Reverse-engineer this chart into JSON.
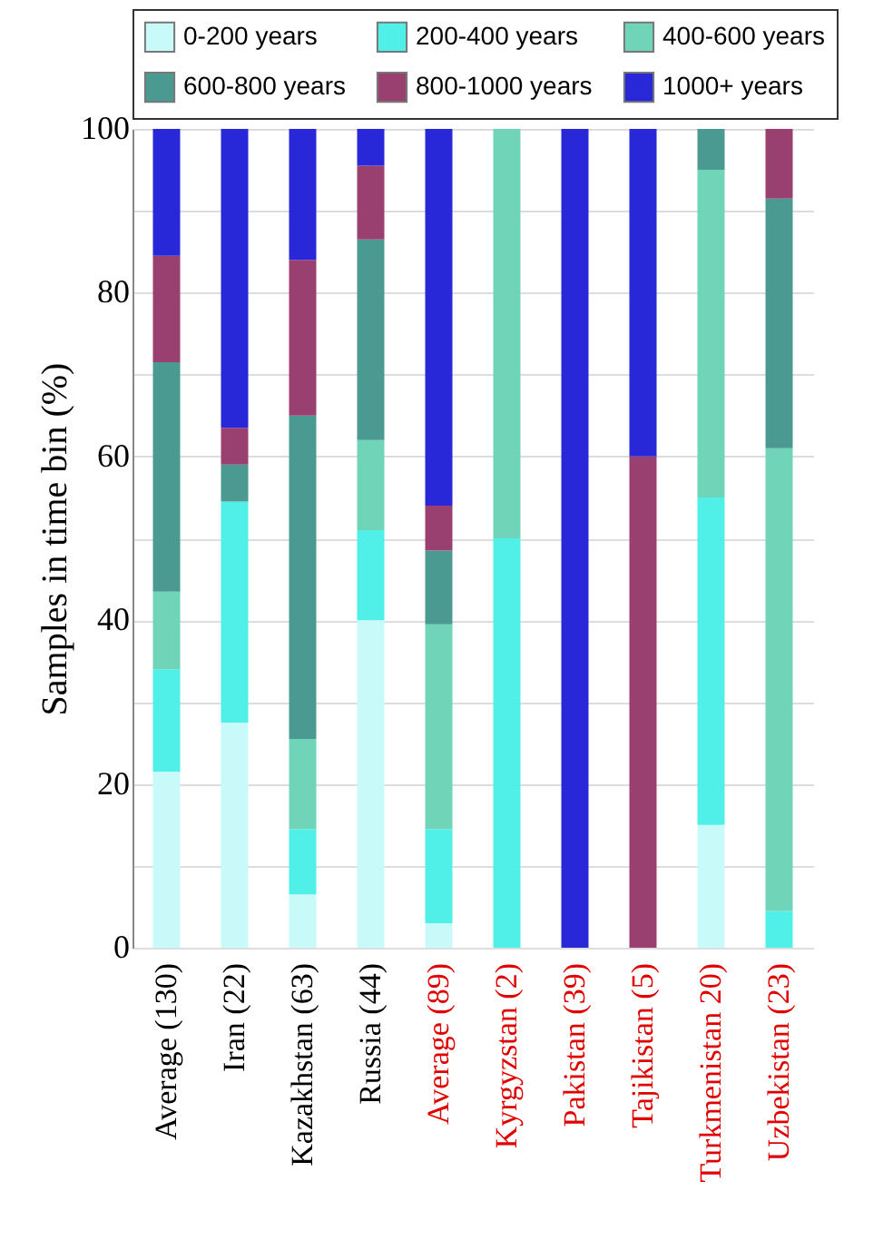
{
  "chart_data": {
    "type": "bar",
    "stacked": true,
    "ylabel": "Samples in time bin (%)",
    "categories": [
      "Average (130)",
      "Iran (22)",
      "Kazakhstan (63)",
      "Russia (44)",
      "Average (89)",
      "Kyrgyzstan (2)",
      "Pakistan (39)",
      "Tajikistan (5)",
      "Turkmenistan 20)",
      "Uzbekistan (23)"
    ],
    "series": [
      {
        "name": "0-200 years",
        "color": "#c8fafa",
        "values": [
          21.5,
          27.5,
          6.5,
          40,
          3,
          0,
          0,
          0,
          15,
          0
        ]
      },
      {
        "name": "200-400 years",
        "color": "#50f0e8",
        "values": [
          12.5,
          27,
          8,
          11,
          11.5,
          50,
          0,
          0,
          40,
          4.5
        ]
      },
      {
        "name": "400-600 years",
        "color": "#70d4b8",
        "values": [
          9.5,
          0,
          11,
          11,
          25,
          50,
          0,
          0,
          40,
          56.5
        ]
      },
      {
        "name": "600-800 years",
        "color": "#4a9a92",
        "values": [
          28,
          4.5,
          39.5,
          24.5,
          9,
          0,
          0,
          0,
          5,
          30.5
        ]
      },
      {
        "name": "800-1000 years",
        "color": "#9a4070",
        "values": [
          13,
          4.5,
          19,
          9,
          5.5,
          0,
          0,
          60,
          0,
          8.5
        ]
      },
      {
        "name": "1000+ years",
        "color": "#2828d8",
        "values": [
          15.5,
          36.5,
          16,
          4.5,
          46,
          0,
          100,
          40,
          0,
          0
        ]
      }
    ],
    "ylim": [
      0,
      100
    ],
    "yticks": [
      0,
      {
        "value": 10,
        "label": null
      },
      20,
      {
        "value": 30,
        "label": null
      },
      40,
      {
        "value": 50,
        "label": null
      },
      60,
      {
        "value": 70,
        "label": null
      },
      80,
      {
        "value": 90,
        "label": null
      },
      100
    ],
    "grid": true,
    "legend": "top"
  }
}
